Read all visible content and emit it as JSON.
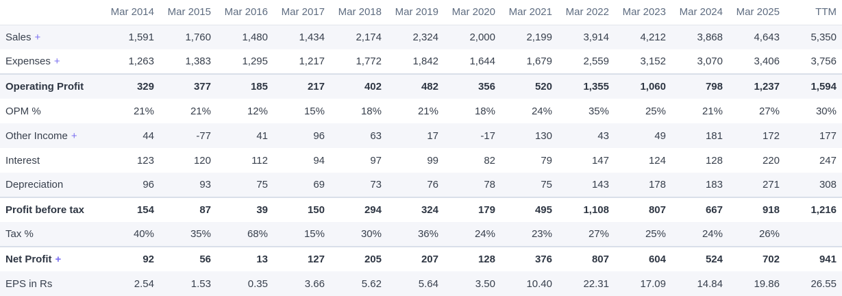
{
  "table": {
    "expand_symbol": "+",
    "columns": [
      "Mar 2014",
      "Mar 2015",
      "Mar 2016",
      "Mar 2017",
      "Mar 2018",
      "Mar 2019",
      "Mar 2020",
      "Mar 2021",
      "Mar 2022",
      "Mar 2023",
      "Mar 2024",
      "Mar 2025",
      "TTM"
    ],
    "rows": [
      {
        "label": "Sales",
        "expandable": true,
        "bold": false,
        "values": [
          "1,591",
          "1,760",
          "1,480",
          "1,434",
          "2,174",
          "2,324",
          "2,000",
          "2,199",
          "3,914",
          "4,212",
          "3,868",
          "4,643",
          "5,350"
        ]
      },
      {
        "label": "Expenses",
        "expandable": true,
        "bold": false,
        "values": [
          "1,263",
          "1,383",
          "1,295",
          "1,217",
          "1,772",
          "1,842",
          "1,644",
          "1,679",
          "2,559",
          "3,152",
          "3,070",
          "3,406",
          "3,756"
        ]
      },
      {
        "label": "Operating Profit",
        "expandable": false,
        "bold": true,
        "values": [
          "329",
          "377",
          "185",
          "217",
          "402",
          "482",
          "356",
          "520",
          "1,355",
          "1,060",
          "798",
          "1,237",
          "1,594"
        ]
      },
      {
        "label": "OPM %",
        "expandable": false,
        "bold": false,
        "values": [
          "21%",
          "21%",
          "12%",
          "15%",
          "18%",
          "21%",
          "18%",
          "24%",
          "35%",
          "25%",
          "21%",
          "27%",
          "30%"
        ]
      },
      {
        "label": "Other Income",
        "expandable": true,
        "bold": false,
        "values": [
          "44",
          "-77",
          "41",
          "96",
          "63",
          "17",
          "-17",
          "130",
          "43",
          "49",
          "181",
          "172",
          "177"
        ]
      },
      {
        "label": "Interest",
        "expandable": false,
        "bold": false,
        "values": [
          "123",
          "120",
          "112",
          "94",
          "97",
          "99",
          "82",
          "79",
          "147",
          "124",
          "128",
          "220",
          "247"
        ]
      },
      {
        "label": "Depreciation",
        "expandable": false,
        "bold": false,
        "values": [
          "96",
          "93",
          "75",
          "69",
          "73",
          "76",
          "78",
          "75",
          "143",
          "178",
          "183",
          "271",
          "308"
        ]
      },
      {
        "label": "Profit before tax",
        "expandable": false,
        "bold": true,
        "values": [
          "154",
          "87",
          "39",
          "150",
          "294",
          "324",
          "179",
          "495",
          "1,108",
          "807",
          "667",
          "918",
          "1,216"
        ]
      },
      {
        "label": "Tax %",
        "expandable": false,
        "bold": false,
        "values": [
          "40%",
          "35%",
          "68%",
          "15%",
          "30%",
          "36%",
          "24%",
          "23%",
          "27%",
          "25%",
          "24%",
          "26%",
          ""
        ]
      },
      {
        "label": "Net Profit",
        "expandable": true,
        "bold": true,
        "values": [
          "92",
          "56",
          "13",
          "127",
          "205",
          "207",
          "128",
          "376",
          "807",
          "604",
          "524",
          "702",
          "941"
        ]
      },
      {
        "label": "EPS in Rs",
        "expandable": false,
        "bold": false,
        "values": [
          "2.54",
          "1.53",
          "0.35",
          "3.66",
          "5.62",
          "5.64",
          "3.50",
          "10.40",
          "22.31",
          "17.09",
          "14.84",
          "19.86",
          "26.55"
        ]
      }
    ]
  },
  "colors": {
    "stripe": "#f5f6fa",
    "header_text": "#5e6c80",
    "body_text": "#373f4c",
    "bold_text": "#2e3643",
    "expand_link": "#7a6ff0",
    "divider": "#d9dfe9",
    "header_divider": "#e2e6ec"
  }
}
